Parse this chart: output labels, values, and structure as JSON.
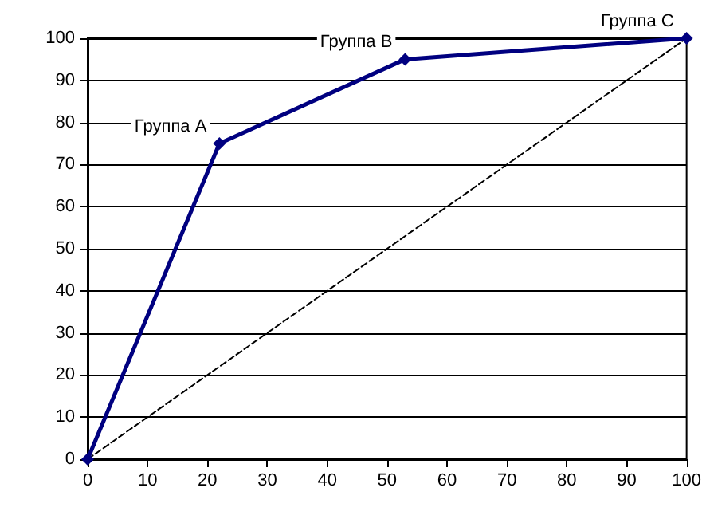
{
  "chart_data": {
    "type": "line",
    "marker": "diamond",
    "grid": "y",
    "xlim": [
      0,
      100
    ],
    "ylim": [
      0,
      100
    ],
    "xticks": [
      0,
      10,
      20,
      30,
      40,
      50,
      60,
      70,
      80,
      90,
      100
    ],
    "yticks": [
      0,
      10,
      20,
      30,
      40,
      50,
      60,
      70,
      80,
      90,
      100
    ],
    "series": [
      {
        "color": "#000080",
        "x": [
          0,
          22,
          53,
          100
        ],
        "values": [
          0,
          75,
          95,
          100
        ]
      },
      {
        "color": "#000000",
        "x": [
          0,
          100
        ],
        "values": [
          0,
          100
        ],
        "marker": "none",
        "line_style": "dashed"
      }
    ],
    "annotations": [
      {
        "text": "Группа A",
        "x": 22,
        "y": 75
      },
      {
        "text": "Группа B",
        "x": 53,
        "y": 95
      },
      {
        "text": "Группа C",
        "x": 100,
        "y": 100
      }
    ]
  }
}
